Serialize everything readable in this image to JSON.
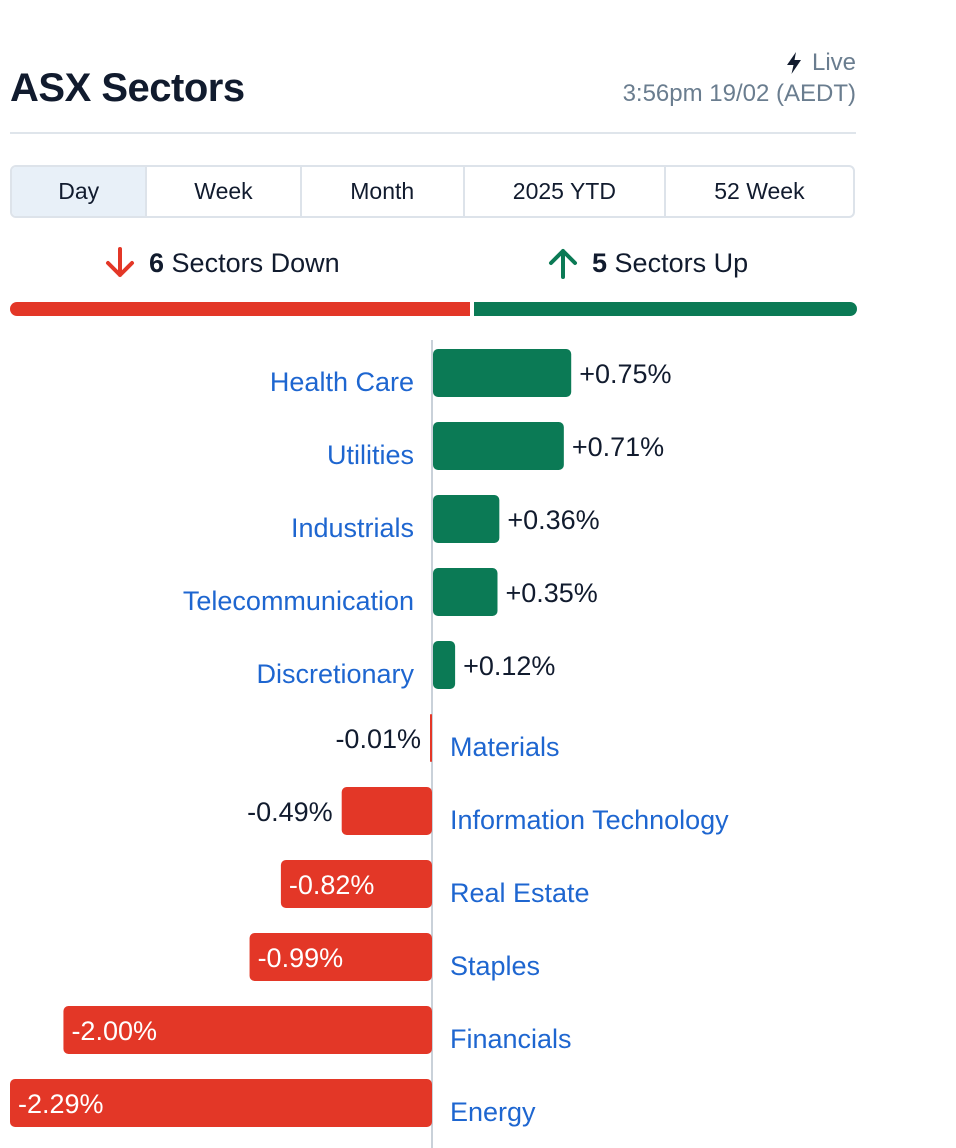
{
  "header": {
    "title": "ASX Sectors",
    "live_label": "Live",
    "live_icon": "lightning-bolt-icon",
    "timestamp": "3:56pm 19/02 (AEDT)"
  },
  "tabs": [
    {
      "label": "Day",
      "active": true
    },
    {
      "label": "Week",
      "active": false
    },
    {
      "label": "Month",
      "active": false
    },
    {
      "label": "2025 YTD",
      "active": false
    },
    {
      "label": "52 Week",
      "active": false
    }
  ],
  "summary": {
    "down_count": "6",
    "down_text": "Sectors Down",
    "down_icon": "arrow-down-icon",
    "up_count": "5",
    "up_text": "Sectors Up",
    "up_icon": "arrow-up-icon",
    "down_fraction": 0.545,
    "up_fraction": 0.455
  },
  "colors": {
    "up": "#0b7a55",
    "down": "#e33727",
    "link": "#1e66d0",
    "text": "#111b2e",
    "muted": "#6a7d8f"
  },
  "chart_data": {
    "type": "bar",
    "orientation": "horizontal",
    "categories": [
      "Health Care",
      "Utilities",
      "Industrials",
      "Telecommunication",
      "Discretionary",
      "Materials",
      "Information Technology",
      "Real Estate",
      "Staples",
      "Financials",
      "Energy"
    ],
    "values": [
      0.75,
      0.71,
      0.36,
      0.35,
      0.12,
      -0.01,
      -0.49,
      -0.82,
      -0.99,
      -2.0,
      -2.29
    ],
    "labels": [
      "+0.75%",
      "+0.71%",
      "+0.36%",
      "+0.35%",
      "+0.12%",
      "-0.01%",
      "-0.49%",
      "-0.82%",
      "-0.99%",
      "-2.00%",
      "-2.29%"
    ],
    "xlim": [
      -2.29,
      2.29
    ],
    "grid": false,
    "legend": "none"
  }
}
